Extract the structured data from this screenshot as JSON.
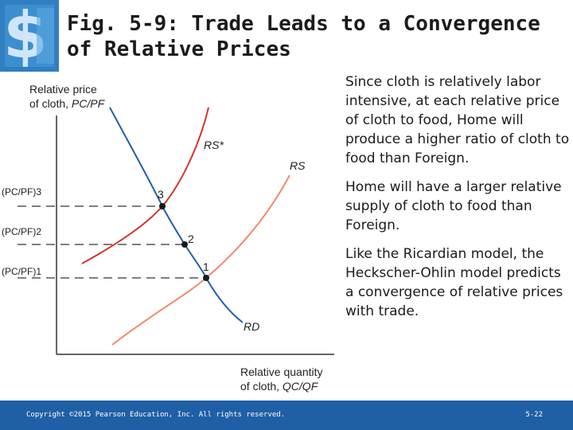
{
  "logo": {
    "icon": "dollar-sign-logo-icon",
    "color": "#2f7fc1"
  },
  "title": {
    "line1": "Fig. 5-9:  Trade Leads to a Convergence",
    "line2": "of Relative Prices"
  },
  "chart_data": {
    "type": "line",
    "title": "",
    "ylabel": "Relative price of cloth, PC/PF",
    "xlabel": "Relative quantity of cloth, QC/QF",
    "y_ticks": [
      "(PC/PF)3",
      "(PC/PF)2",
      "(PC/PF)1"
    ],
    "series": [
      {
        "name": "RS*",
        "color": "#d9302a"
      },
      {
        "name": "RS",
        "color": "#f08a6a"
      },
      {
        "name": "RD",
        "color": "#2060a8"
      }
    ],
    "points": [
      {
        "label": "3",
        "price_level": "(PC/PF)3",
        "on": [
          "RS*",
          "RD"
        ]
      },
      {
        "label": "2",
        "price_level": "(PC/PF)2",
        "on": [
          "RD"
        ]
      },
      {
        "label": "1",
        "price_level": "(PC/PF)1",
        "on": [
          "RS",
          "RD"
        ]
      }
    ]
  },
  "axis": {
    "y_label_line1": "Relative price",
    "y_label_line2_prefix": "of cloth, ",
    "y_label_var": "PC/PF",
    "x_label_line1": "Relative quantity",
    "x_label_line2_prefix": "of cloth, ",
    "x_label_var": "QC/QF",
    "tick3": "(PC/PF)3",
    "tick2": "(PC/PF)2",
    "tick1": "(PC/PF)1"
  },
  "curves": {
    "rs_star": "RS*",
    "rs": "RS",
    "rd": "RD"
  },
  "point_labels": {
    "p3": "3",
    "p2": "2",
    "p1": "1"
  },
  "text": {
    "p1": "Since cloth is relatively labor intensive, at each relative price of cloth to food, Home will produce a higher ratio of cloth to food than Foreign.",
    "p2": "Home will have a larger relative supply of cloth to food than Foreign.",
    "p3": "Like the Ricardian model, the Heckscher-Ohlin model predicts a convergence of relative prices with trade."
  },
  "footer": {
    "copyright": "Copyright ©2015 Pearson Education, Inc. All rights reserved.",
    "page": "5-22",
    "color": "#1f5fa5"
  }
}
